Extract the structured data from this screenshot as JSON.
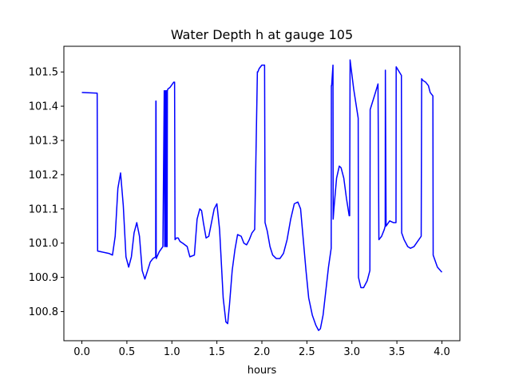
{
  "chart_data": {
    "type": "line",
    "title": "Water Depth h at gauge 105",
    "xlabel": "hours",
    "ylabel": "",
    "xlim": [
      -0.2,
      4.2
    ],
    "ylim": [
      100.715,
      101.575
    ],
    "xticks": [
      0.0,
      0.5,
      1.0,
      1.5,
      2.0,
      2.5,
      3.0,
      3.5,
      4.0
    ],
    "xtick_labels": [
      "0.0",
      "0.5",
      "1.0",
      "1.5",
      "2.0",
      "2.5",
      "3.0",
      "3.5",
      "4.0"
    ],
    "yticks": [
      100.8,
      100.9,
      101.0,
      101.1,
      101.2,
      101.3,
      101.4,
      101.5
    ],
    "ytick_labels": [
      "100.8",
      "100.9",
      "101.0",
      "101.1",
      "101.2",
      "101.3",
      "101.4",
      "101.5"
    ],
    "grid": false,
    "series": [
      {
        "name": "",
        "color": "#0000ff",
        "x": [
          0.0,
          0.17,
          0.175,
          0.3,
          0.34,
          0.37,
          0.4,
          0.43,
          0.46,
          0.49,
          0.52,
          0.55,
          0.58,
          0.61,
          0.64,
          0.67,
          0.7,
          0.73,
          0.76,
          0.79,
          0.82,
          0.822,
          0.824,
          0.826,
          0.86,
          0.9,
          0.915,
          0.917,
          0.92,
          0.922,
          0.93,
          0.932,
          0.935,
          0.938,
          0.94,
          0.942,
          0.945,
          0.947,
          0.95,
          0.955,
          0.98,
          1.02,
          1.03,
          1.035,
          1.05,
          1.07,
          1.09,
          1.12,
          1.17,
          1.2,
          1.25,
          1.28,
          1.31,
          1.33,
          1.35,
          1.38,
          1.41,
          1.44,
          1.47,
          1.5,
          1.53,
          1.57,
          1.6,
          1.62,
          1.64,
          1.67,
          1.7,
          1.73,
          1.77,
          1.8,
          1.83,
          1.86,
          1.89,
          1.92,
          1.95,
          1.955,
          1.97,
          2.0,
          2.03,
          2.035,
          2.06,
          2.09,
          2.12,
          2.16,
          2.2,
          2.24,
          2.28,
          2.32,
          2.36,
          2.4,
          2.43,
          2.46,
          2.49,
          2.52,
          2.56,
          2.6,
          2.63,
          2.65,
          2.68,
          2.71,
          2.74,
          2.77,
          2.772,
          2.775,
          2.79,
          2.792,
          2.8,
          2.83,
          2.86,
          2.88,
          2.91,
          2.94,
          2.97,
          2.975,
          2.98,
          3.02,
          3.07,
          3.073,
          3.1,
          3.13,
          3.17,
          3.2,
          3.203,
          3.25,
          3.29,
          3.3,
          3.33,
          3.36,
          3.37,
          3.372,
          3.38,
          3.42,
          3.46,
          3.49,
          3.492,
          3.55,
          3.553,
          3.58,
          3.62,
          3.65,
          3.69,
          3.73,
          3.77,
          3.775,
          3.79,
          3.82,
          3.85,
          3.87,
          3.9,
          3.903,
          3.95,
          4.0
        ],
        "y": [
          101.44,
          101.438,
          100.977,
          100.97,
          100.965,
          101.02,
          101.16,
          101.205,
          101.11,
          100.96,
          100.93,
          100.96,
          101.03,
          101.06,
          101.02,
          100.92,
          100.895,
          100.92,
          100.945,
          100.955,
          100.96,
          101.415,
          101.415,
          100.955,
          100.975,
          100.99,
          101.445,
          101.445,
          100.99,
          100.99,
          101.445,
          101.445,
          100.99,
          100.99,
          101.445,
          101.445,
          100.99,
          100.99,
          101.445,
          101.45,
          101.455,
          101.47,
          101.47,
          101.01,
          101.015,
          101.015,
          101.005,
          101.0,
          100.99,
          100.96,
          100.965,
          101.07,
          101.1,
          101.095,
          101.06,
          101.015,
          101.02,
          101.06,
          101.1,
          101.115,
          101.04,
          100.84,
          100.77,
          100.765,
          100.82,
          100.92,
          100.98,
          101.025,
          101.02,
          101.0,
          100.995,
          101.01,
          101.03,
          101.04,
          101.5,
          101.5,
          101.51,
          101.52,
          101.52,
          101.06,
          101.035,
          100.99,
          100.965,
          100.955,
          100.955,
          100.97,
          101.01,
          101.07,
          101.115,
          101.12,
          101.1,
          101.01,
          100.92,
          100.84,
          100.79,
          100.76,
          100.745,
          100.75,
          100.79,
          100.86,
          100.93,
          100.985,
          101.46,
          101.46,
          101.52,
          101.07,
          101.1,
          101.19,
          101.225,
          101.22,
          101.19,
          101.13,
          101.08,
          101.08,
          101.535,
          101.45,
          101.365,
          100.9,
          100.87,
          100.87,
          100.89,
          100.92,
          101.39,
          101.43,
          101.465,
          101.01,
          101.02,
          101.04,
          101.05,
          101.505,
          101.05,
          101.065,
          101.06,
          101.06,
          101.515,
          101.49,
          101.03,
          101.01,
          100.99,
          100.985,
          100.99,
          101.005,
          101.02,
          101.48,
          101.475,
          101.47,
          101.46,
          101.44,
          101.43,
          100.965,
          100.93,
          100.915
        ]
      }
    ]
  }
}
